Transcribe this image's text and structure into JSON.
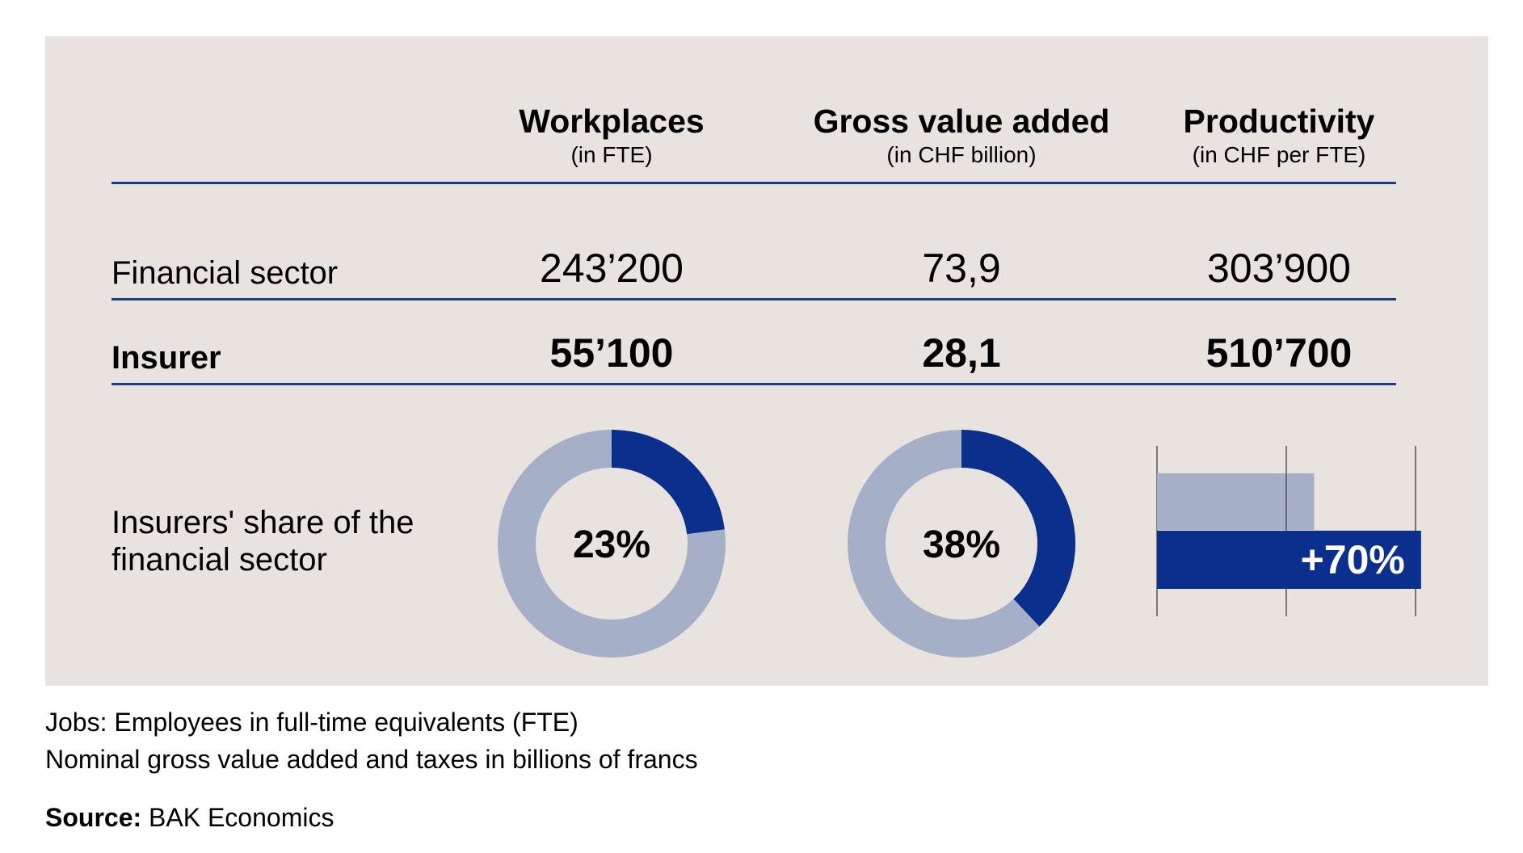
{
  "columns": [
    {
      "title": "Workplaces",
      "subtitle": "(in FTE)"
    },
    {
      "title": "Gross value added",
      "subtitle": "(in CHF billion)"
    },
    {
      "title": "Productivity",
      "subtitle": "(in CHF per FTE)"
    }
  ],
  "rows": [
    {
      "label": "Financial sector",
      "values": [
        "243’200",
        "73,9",
        "303’900"
      ]
    },
    {
      "label": "Insurer",
      "values": [
        "55’100",
        "28,1",
        "510’700"
      ]
    }
  ],
  "share_row_label": "Insurers' share of the financial sector",
  "colors": {
    "background": "#e8e3de",
    "dark_blue": "#0a2f8c",
    "light_blue": "#a5afc8",
    "rule": "#1f3a8a"
  },
  "chart_data": [
    {
      "type": "pie",
      "variant": "donut",
      "categories": [
        "Insurer",
        "Rest of financial sector"
      ],
      "values": [
        23,
        77
      ],
      "label": "23%"
    },
    {
      "type": "pie",
      "variant": "donut",
      "categories": [
        "Insurer",
        "Rest of financial sector"
      ],
      "values": [
        38,
        62
      ],
      "label": "38%"
    },
    {
      "type": "bar",
      "orientation": "horizontal",
      "categories": [
        "Financial sector",
        "Insurer"
      ],
      "values": [
        303900,
        510700
      ],
      "label": "+70%",
      "grid": true
    }
  ],
  "footnotes": [
    "Jobs: Employees in full-time equivalents (FTE)",
    "Nominal gross value added and taxes in billions of francs"
  ],
  "source": {
    "label": "Source:",
    "text": " BAK Economics"
  }
}
